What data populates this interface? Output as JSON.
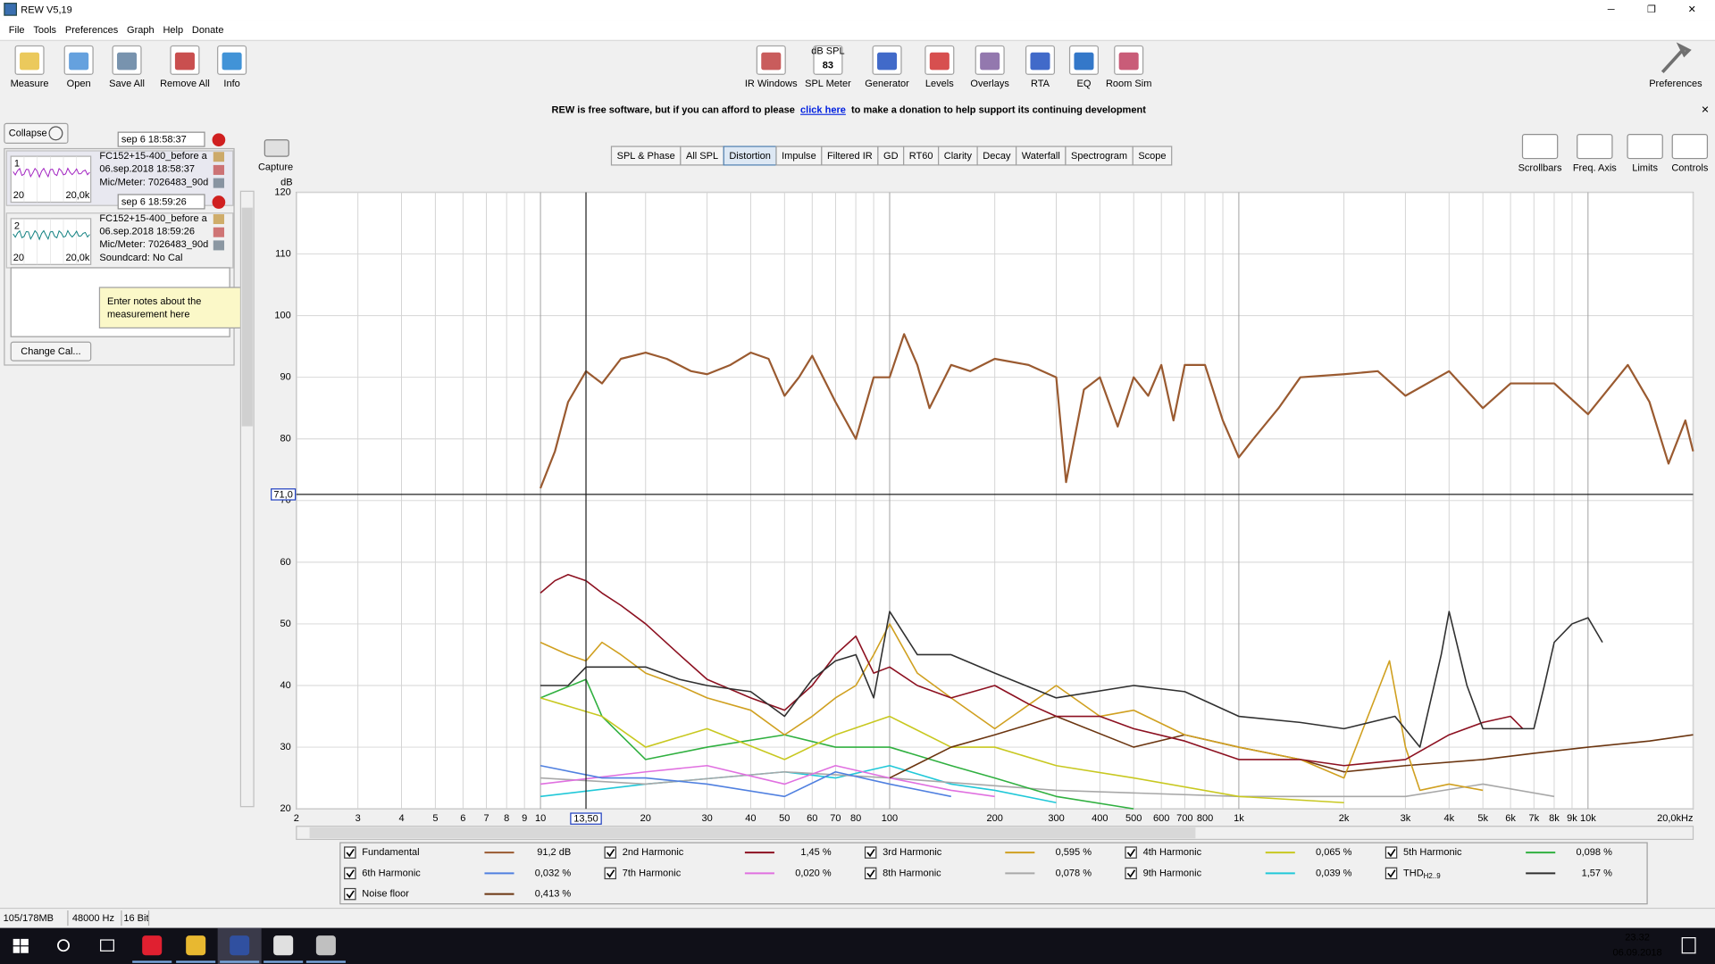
{
  "window": {
    "title": "REW V5,19"
  },
  "menu": [
    "File",
    "Tools",
    "Preferences",
    "Graph",
    "Help",
    "Donate"
  ],
  "toolbar_left": [
    "Measure",
    "Open",
    "Save All",
    "Remove All",
    "Info"
  ],
  "toolbar_center": [
    "IR Windows",
    "SPL Meter",
    "Generator",
    "Levels",
    "Overlays",
    "RTA",
    "EQ",
    "Room Sim"
  ],
  "spl_icon": {
    "unit": "dB SPL",
    "reading": 83
  },
  "toolbar_right": [
    "Preferences"
  ],
  "banner": {
    "before": "REW is free software, but if you can afford to please",
    "link": "click here",
    "after": "to make a donation to help support its continuing development"
  },
  "panel": {
    "collapse": "Collapse",
    "measurements": [
      {
        "index": 1,
        "name": "sep 6 18:58:37",
        "lines": [
          "FC152+15-400_before a",
          "06.sep.2018 18:58:37",
          "Mic/Meter: 7026483_90d"
        ],
        "range": [
          "20",
          "20,0k"
        ]
      },
      {
        "index": 2,
        "name": "sep 6 18:59:26",
        "lines": [
          "FC152+15-400_before a",
          "06.sep.2018 18:59:26",
          "Mic/Meter: 7026483_90d",
          "Soundcard: No Cal"
        ],
        "range": [
          "20",
          "20,0k"
        ]
      }
    ],
    "notes_tooltip": [
      "Enter notes about the",
      "measurement here"
    ],
    "change_cal": "Change Cal..."
  },
  "capture": "Capture",
  "tabs": [
    "SPL & Phase",
    "All SPL",
    "Distortion",
    "Impulse",
    "Filtered IR",
    "GD",
    "RT60",
    "Clarity",
    "Decay",
    "Waterfall",
    "Spectrogram",
    "Scope"
  ],
  "active_tab": "Distortion",
  "graph_tools": [
    "Scrollbars",
    "Freq. Axis",
    "Limits",
    "Controls"
  ],
  "chart_data": {
    "type": "line",
    "y_label": "dB",
    "log_x": true,
    "grid": true,
    "xlim": [
      2,
      20000
    ],
    "ylim": [
      20,
      120
    ],
    "yticks": [
      20,
      30,
      40,
      50,
      60,
      70,
      80,
      90,
      100,
      110,
      120
    ],
    "xticks": [
      2,
      3,
      4,
      5,
      6,
      7,
      8,
      9,
      10,
      20,
      30,
      40,
      50,
      60,
      70,
      80,
      100,
      200,
      300,
      400,
      500,
      600,
      700,
      800,
      {
        "value": 1000,
        "label": "1k"
      },
      {
        "value": 2000,
        "label": "2k"
      },
      {
        "value": 3000,
        "label": "3k"
      },
      {
        "value": 4000,
        "label": "4k"
      },
      {
        "value": 5000,
        "label": "5k"
      },
      {
        "value": 6000,
        "label": "6k"
      },
      {
        "value": 7000,
        "label": "7k"
      },
      {
        "value": 8000,
        "label": "8k"
      },
      {
        "value": 9000,
        "label": "9k"
      },
      {
        "value": 10000,
        "label": "10k"
      },
      {
        "value": 20000,
        "label": "20,0kHz"
      }
    ],
    "xminor": [
      90,
      900
    ],
    "cursor": {
      "x": 13.5,
      "x_label": "13,50",
      "y": 71.0,
      "y_label": "71,0"
    },
    "series": [
      {
        "name": "Fundamental",
        "color": "#9a5a30",
        "readout": "91,2 dB",
        "x": [
          10,
          11,
          12,
          13.5,
          15,
          17,
          20,
          23,
          27,
          30,
          35,
          40,
          45,
          50,
          55,
          60,
          70,
          80,
          90,
          100,
          110,
          120,
          130,
          150,
          170,
          200,
          250,
          300,
          320,
          360,
          400,
          450,
          500,
          550,
          600,
          650,
          700,
          800,
          900,
          1000,
          1100,
          1300,
          1500,
          2000,
          2500,
          3000,
          4000,
          5000,
          6000,
          8000,
          10000,
          13000,
          15000,
          17000,
          19000,
          20000
        ],
        "values": [
          72,
          78,
          86,
          91,
          89,
          93,
          94,
          93,
          91,
          90.5,
          92,
          94,
          93,
          87,
          90,
          93.5,
          86,
          80,
          90,
          90,
          97,
          92,
          85,
          92,
          91,
          93,
          92,
          90,
          73,
          88,
          90,
          82,
          90,
          87,
          92,
          83,
          92,
          92,
          83,
          77,
          80,
          85,
          90,
          90.5,
          91,
          87,
          91,
          85,
          89,
          89,
          84,
          92,
          86,
          76,
          83,
          78
        ]
      },
      {
        "name": "2nd Harmonic",
        "color": "#8c1020",
        "readout": "1,45 %",
        "x": [
          10,
          11,
          12,
          13.5,
          15,
          17,
          20,
          25,
          30,
          40,
          50,
          60,
          70,
          80,
          90,
          100,
          120,
          150,
          200,
          250,
          300,
          400,
          500,
          700,
          1000,
          1500,
          2000,
          3000,
          4000,
          5000,
          6000,
          6500
        ],
        "values": [
          55,
          57,
          58,
          57,
          55,
          53,
          50,
          45,
          41,
          38,
          36,
          40,
          45,
          48,
          42,
          43,
          40,
          38,
          40,
          37,
          35,
          35,
          33,
          31,
          28,
          28,
          27,
          28,
          32,
          34,
          35,
          33
        ]
      },
      {
        "name": "3rd Harmonic",
        "color": "#d0a020",
        "readout": "0,595 %",
        "x": [
          10,
          12,
          13.5,
          15,
          17,
          20,
          25,
          30,
          40,
          50,
          60,
          70,
          80,
          90,
          100,
          120,
          150,
          200,
          300,
          400,
          500,
          700,
          1000,
          1500,
          2000,
          2700,
          3000,
          3300,
          4000,
          5000
        ],
        "values": [
          47,
          45,
          44,
          47,
          45,
          42,
          40,
          38,
          36,
          32,
          35,
          38,
          40,
          45,
          50,
          42,
          38,
          33,
          40,
          35,
          36,
          32,
          30,
          28,
          25,
          44,
          30,
          23,
          24,
          23
        ]
      },
      {
        "name": "4th Harmonic",
        "color": "#c8c820",
        "readout": "0,065 %",
        "x": [
          10,
          15,
          20,
          30,
          50,
          70,
          100,
          150,
          200,
          300,
          500,
          1000,
          2000
        ],
        "values": [
          38,
          35,
          30,
          33,
          28,
          32,
          35,
          30,
          30,
          27,
          25,
          22,
          21
        ]
      },
      {
        "name": "5th Harmonic",
        "color": "#30b040",
        "readout": "0,098 %",
        "x": [
          10,
          13.5,
          15,
          20,
          30,
          50,
          70,
          100,
          150,
          200,
          300,
          500
        ],
        "values": [
          38,
          41,
          35,
          28,
          30,
          32,
          30,
          30,
          27,
          25,
          22,
          20
        ]
      },
      {
        "name": "6th Harmonic",
        "color": "#5080e0",
        "readout": "0,032 %",
        "x": [
          10,
          15,
          20,
          30,
          50,
          70,
          100,
          150
        ],
        "values": [
          27,
          25,
          25,
          24,
          22,
          26,
          24,
          22
        ]
      },
      {
        "name": "7th Harmonic",
        "color": "#e070e0",
        "readout": "0,020 %",
        "x": [
          10,
          20,
          30,
          50,
          70,
          100,
          150,
          200
        ],
        "values": [
          24,
          26,
          27,
          24,
          27,
          25,
          23,
          22
        ]
      },
      {
        "name": "8th Harmonic",
        "color": "#a8a8a8",
        "readout": "0,078 %",
        "x": [
          10,
          20,
          50,
          100,
          300,
          1000,
          3000,
          5000,
          8000
        ],
        "values": [
          25,
          24,
          26,
          25,
          23,
          22,
          22,
          24,
          22
        ]
      },
      {
        "name": "9th Harmonic",
        "color": "#20c8d8",
        "readout": "0,039 %",
        "x": [
          10,
          20,
          50,
          70,
          100,
          150,
          200,
          300
        ],
        "values": [
          22,
          24,
          26,
          25,
          27,
          24,
          23,
          21
        ]
      },
      {
        "name": "THD",
        "name_sub": "H2..9",
        "color": "#303030",
        "readout": "1,57 %",
        "x": [
          10,
          12,
          13.5,
          15,
          20,
          25,
          30,
          40,
          50,
          60,
          70,
          80,
          90,
          100,
          120,
          150,
          200,
          300,
          500,
          700,
          1000,
          1500,
          2000,
          2800,
          3300,
          3800,
          4000,
          4500,
          5000,
          7000,
          7500,
          8000,
          9000,
          10000,
          11000
        ],
        "values": [
          40,
          40,
          43,
          43,
          43,
          41,
          40,
          39,
          35,
          41,
          44,
          45,
          38,
          52,
          45,
          45,
          42,
          38,
          40,
          39,
          35,
          34,
          33,
          35,
          30,
          45,
          52,
          40,
          33,
          33,
          40,
          47,
          50,
          51,
          47
        ]
      },
      {
        "name": "Noise floor",
        "color": "#6b3510",
        "readout": "0,413 %",
        "x": [
          100,
          150,
          200,
          300,
          500,
          700,
          1000,
          1500,
          2000,
          3000,
          5000,
          7000,
          10000,
          15000,
          20000
        ],
        "values": [
          25,
          30,
          32,
          35,
          30,
          32,
          30,
          28,
          26,
          27,
          28,
          29,
          30,
          31,
          32
        ]
      }
    ]
  },
  "status": [
    "105/178MB",
    "48000 Hz",
    "16 Bit"
  ],
  "taskbar": {
    "time": "23.32",
    "date": "06.09.2018"
  }
}
